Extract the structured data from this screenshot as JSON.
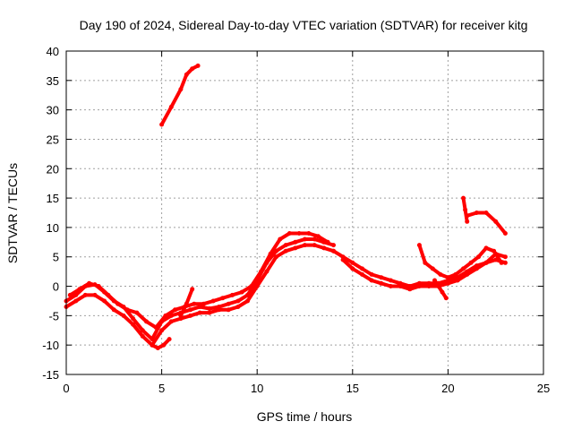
{
  "chart_data": {
    "type": "scatter",
    "title": "Day 190 of 2024, Sidereal Day-to-day VTEC variation (SDTVAR) for receiver kitg",
    "xlabel": "GPS time / hours",
    "ylabel": "SDTVAR / TECUs",
    "xlim": [
      0,
      25
    ],
    "ylim": [
      -15,
      40
    ],
    "xticks": [
      0,
      5,
      10,
      15,
      20,
      25
    ],
    "yticks": [
      -15,
      -10,
      -5,
      0,
      5,
      10,
      15,
      20,
      25,
      30,
      35,
      40
    ],
    "grid": true,
    "marker_color": "#ff0000",
    "series": [
      {
        "name": "trace-1",
        "x": [
          0.0,
          0.5,
          1.0,
          1.5,
          2.0,
          2.5,
          3.0,
          3.5,
          4.0,
          4.5,
          5.0,
          5.5,
          6.0,
          6.5,
          7.0,
          7.5,
          8.0,
          8.5,
          9.0,
          9.5,
          10.0,
          10.5,
          11.0,
          11.5,
          12.0,
          12.5,
          13.0,
          13.5,
          14.0
        ],
        "y": [
          -2.5,
          -1.5,
          0.0,
          0.3,
          -1.0,
          -2.5,
          -3.5,
          -5.5,
          -7.5,
          -9.0,
          -6.0,
          -5.0,
          -4.5,
          -4.0,
          -3.5,
          -3.8,
          -3.5,
          -3.0,
          -2.5,
          -1.5,
          1.0,
          4.0,
          6.0,
          7.0,
          7.5,
          8.0,
          8.0,
          7.5,
          7.0
        ]
      },
      {
        "name": "trace-2",
        "x": [
          0.0,
          0.5,
          1.0,
          1.5,
          2.0,
          2.5,
          3.0,
          3.5,
          4.0,
          4.5,
          5.0,
          5.5,
          6.0,
          6.5,
          7.0,
          7.5,
          8.0,
          8.5,
          9.0,
          9.5,
          10.0,
          10.5,
          11.0,
          11.5,
          12.0,
          12.5,
          13.0,
          13.5,
          14.0
        ],
        "y": [
          -3.5,
          -2.5,
          -1.5,
          -1.5,
          -2.5,
          -4.0,
          -5.0,
          -6.5,
          -8.5,
          -10.0,
          -7.5,
          -6.0,
          -5.5,
          -5.0,
          -4.5,
          -4.5,
          -4.0,
          -4.0,
          -3.5,
          -2.5,
          0.0,
          2.5,
          5.0,
          6.0,
          6.5,
          7.0,
          7.0,
          6.5,
          6.0
        ]
      },
      {
        "name": "trace-3",
        "x": [
          0.2,
          0.7,
          1.2,
          1.7,
          2.2,
          2.7,
          3.2,
          3.7,
          4.2,
          4.7,
          5.2,
          5.7,
          6.2,
          6.7,
          7.2,
          7.7,
          8.2,
          8.7,
          9.2,
          9.7,
          10.2,
          10.7,
          11.2,
          11.7,
          12.2,
          12.7,
          13.2,
          13.7
        ],
        "y": [
          -1.5,
          -0.5,
          0.5,
          0.0,
          -1.5,
          -3.0,
          -4.0,
          -4.5,
          -6.0,
          -7.0,
          -5.0,
          -4.0,
          -3.5,
          -3.0,
          -3.0,
          -2.5,
          -2.0,
          -1.5,
          -1.0,
          0.0,
          2.5,
          5.5,
          8.0,
          9.0,
          9.0,
          9.0,
          8.5,
          7.5
        ]
      },
      {
        "name": "trace-4",
        "x": [
          14.0,
          14.5,
          15.0,
          15.5,
          16.0,
          16.5,
          17.0,
          17.5,
          18.0,
          18.5,
          19.0,
          19.5,
          20.0,
          20.5,
          21.0,
          21.5,
          22.0,
          22.5,
          23.0
        ],
        "y": [
          6.0,
          5.0,
          4.0,
          3.0,
          2.0,
          1.5,
          1.0,
          0.5,
          0.0,
          0.5,
          0.5,
          0.5,
          1.0,
          1.5,
          2.5,
          3.5,
          4.0,
          4.5,
          4.0
        ]
      },
      {
        "name": "trace-5",
        "x": [
          14.5,
          15.0,
          15.5,
          16.0,
          16.5,
          17.0,
          17.5,
          18.0,
          18.5,
          19.0,
          19.5,
          20.0,
          20.5,
          21.0,
          21.5,
          22.0,
          22.5,
          23.0
        ],
        "y": [
          4.5,
          3.0,
          2.0,
          1.0,
          0.5,
          0.0,
          0.0,
          -0.5,
          0.0,
          0.0,
          0.0,
          0.5,
          1.0,
          2.0,
          3.0,
          4.0,
          5.5,
          5.0
        ]
      },
      {
        "name": "trace-6",
        "x": [
          18.5,
          18.8,
          19.2,
          19.6,
          20.0,
          20.4,
          20.8,
          21.2,
          21.6,
          22.0,
          22.4,
          22.8
        ],
        "y": [
          7.0,
          4.0,
          3.0,
          2.0,
          1.5,
          2.0,
          3.0,
          4.0,
          5.0,
          6.5,
          6.0,
          4.0
        ]
      },
      {
        "name": "trace-7",
        "x": [
          19.3,
          19.5,
          19.7,
          19.9
        ],
        "y": [
          1.0,
          0.0,
          -1.0,
          -2.0
        ]
      },
      {
        "name": "trace-8",
        "x": [
          5.0,
          5.5,
          6.0,
          6.3,
          6.6,
          6.9
        ],
        "y": [
          27.5,
          30.5,
          33.5,
          36.0,
          37.0,
          37.5
        ]
      },
      {
        "name": "trace-9",
        "x": [
          20.8,
          20.9,
          21.0
        ],
        "y": [
          15.0,
          13.0,
          11.0
        ]
      },
      {
        "name": "trace-10",
        "x": [
          21.0,
          21.5,
          22.0,
          22.5,
          23.0
        ],
        "y": [
          12.0,
          12.5,
          12.5,
          11.0,
          9.0
        ]
      },
      {
        "name": "trace-11",
        "x": [
          4.5,
          4.8,
          5.1,
          5.4
        ],
        "y": [
          -10.0,
          -10.5,
          -10.0,
          -9.0
        ]
      },
      {
        "name": "trace-12",
        "x": [
          6.0,
          6.3,
          6.6
        ],
        "y": [
          -5.0,
          -3.0,
          -0.5
        ]
      }
    ]
  }
}
